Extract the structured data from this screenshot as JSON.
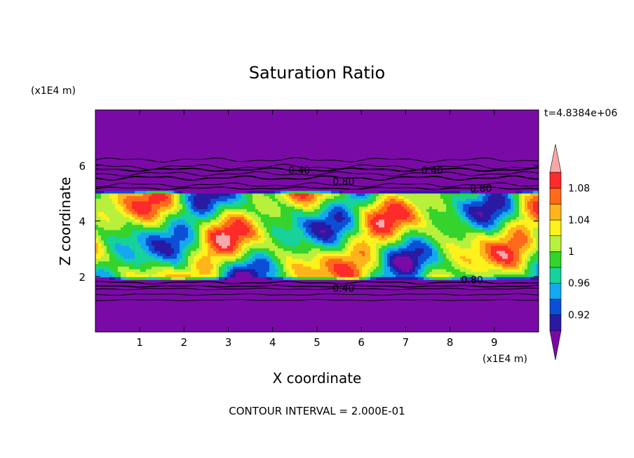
{
  "chart_data": {
    "type": "heatmap",
    "title": "Saturation Ratio",
    "xlabel": "X coordinate",
    "ylabel": "Z coordinate",
    "x_unit": "(x1E4 m)",
    "y_unit": "(x1E4 m)",
    "time_label": "t=4.8384e+06",
    "footer": "CONTOUR INTERVAL = 2.000E-01",
    "xlim": [
      0,
      10
    ],
    "ylim": [
      0,
      8
    ],
    "xticks": [
      1,
      2,
      3,
      4,
      5,
      6,
      7,
      8,
      9
    ],
    "yticks": [
      2,
      4,
      6
    ],
    "contour_labels": [
      {
        "text": "0.40",
        "x": 4.6,
        "z": 5.7
      },
      {
        "text": "0.40",
        "x": 7.6,
        "z": 5.7
      },
      {
        "text": "0.80",
        "x": 5.6,
        "z": 5.3
      },
      {
        "text": "0.80",
        "x": 8.7,
        "z": 5.05
      },
      {
        "text": "0.40",
        "x": 5.6,
        "z": 1.45
      },
      {
        "text": "0.80",
        "x": 8.5,
        "z": 1.75
      }
    ],
    "colorbar": {
      "labels": [
        "1.08",
        "1.04",
        "1",
        "0.96",
        "0.92"
      ],
      "levels": [
        0.9,
        0.92,
        0.94,
        0.96,
        0.98,
        1.0,
        1.02,
        1.04,
        1.06,
        1.08,
        1.1
      ],
      "colors": [
        "#7a0aa6",
        "#2a1aa3",
        "#0a4fd6",
        "#14a8f0",
        "#17d29a",
        "#34d42c",
        "#b8f03c",
        "#fff21c",
        "#ffb41c",
        "#ff6a1a",
        "#ff2a2a",
        "#f7a8a8"
      ],
      "extend": "both"
    }
  }
}
